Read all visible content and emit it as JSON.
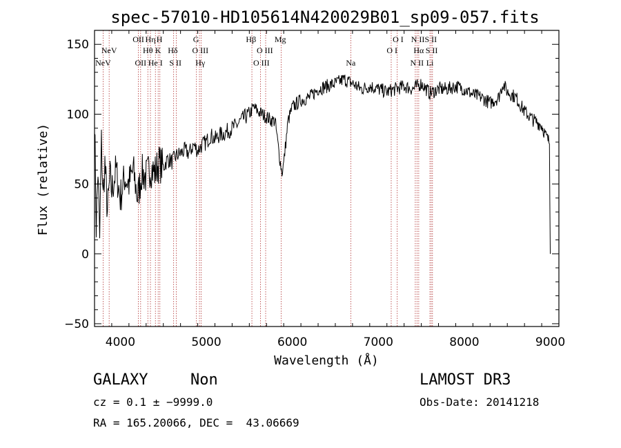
{
  "chart_data": {
    "type": "line",
    "title": "spec-57010-HD105614N420029B01_sp09-057.fits",
    "xlabel": "Wavelength (Å)",
    "ylabel": "Flux (relative)",
    "xlim": [
      3700,
      9100
    ],
    "ylim": [
      -52,
      160
    ],
    "xticks": [
      4000,
      5000,
      6000,
      7000,
      8000,
      9000
    ],
    "xtick_labels": [
      "4000",
      "5000",
      "6000",
      "7000",
      "8000",
      "9000"
    ],
    "yticks": [
      -50,
      0,
      50,
      100,
      150
    ],
    "ytick_labels": [
      "−50",
      "0",
      "50",
      "100",
      "150"
    ],
    "grid": false,
    "legend": "none",
    "series": [
      {
        "x": [
          3700,
          3720,
          3740,
          3760,
          3780,
          3800,
          3820,
          3850,
          3880,
          3900,
          3950,
          4000,
          4050,
          4100,
          4150,
          4200,
          4250,
          4300,
          4350,
          4400,
          4450,
          4500,
          4550,
          4600,
          4650,
          4700,
          4750,
          4800,
          4850,
          4900,
          4950,
          5000,
          5050,
          5100,
          5150,
          5200,
          5250,
          5300,
          5350,
          5400,
          5450,
          5500,
          5550,
          5600,
          5650,
          5700,
          5750,
          5800,
          5850,
          5880,
          5900,
          5950,
          6000,
          6100,
          6200,
          6300,
          6400,
          6500,
          6600,
          6700,
          6800,
          6900,
          7000,
          7100,
          7200,
          7300,
          7400,
          7500,
          7600,
          7700,
          7800,
          7900,
          8000,
          8100,
          8200,
          8300,
          8400,
          8450,
          8500,
          8600,
          8700,
          8800,
          8900,
          8950,
          8990,
          9000
        ],
        "y": [
          100,
          20,
          60,
          10,
          80,
          40,
          65,
          30,
          55,
          45,
          60,
          40,
          55,
          50,
          60,
          40,
          58,
          55,
          62,
          58,
          65,
          62,
          68,
          66,
          70,
          72,
          74,
          72,
          78,
          74,
          78,
          80,
          85,
          82,
          85,
          86,
          88,
          90,
          92,
          95,
          98,
          100,
          105,
          102,
          100,
          98,
          96,
          95,
          70,
          58,
          65,
          95,
          105,
          110,
          112,
          118,
          120,
          122,
          125,
          122,
          118,
          120,
          118,
          116,
          118,
          120,
          118,
          122,
          115,
          118,
          118,
          120,
          118,
          114,
          112,
          108,
          112,
          122,
          116,
          112,
          102,
          96,
          92,
          84,
          80,
          0
        ]
      }
    ],
    "spectral_lines": [
      {
        "label": "NeV",
        "wavelength": 3800,
        "row": 3
      },
      {
        "label": "NeV",
        "wavelength": 3870,
        "row": 2
      },
      {
        "label": "OII",
        "wavelength": 4210,
        "row": 1
      },
      {
        "label": "OII",
        "wavelength": 4236,
        "row": 3
      },
      {
        "label": "Hη",
        "wavelength": 4350,
        "row": 1
      },
      {
        "label": "Hθ",
        "wavelength": 4320,
        "row": 2
      },
      {
        "label": "H",
        "wavelength": 4455,
        "row": 1
      },
      {
        "label": "He I",
        "wavelength": 4408,
        "row": 3
      },
      {
        "label": "K",
        "wavelength": 4440,
        "row": 2
      },
      {
        "label": "Hδ",
        "wavelength": 4610,
        "row": 2
      },
      {
        "label": "S II",
        "wavelength": 4640,
        "row": 3
      },
      {
        "label": "G",
        "wavelength": 4880,
        "row": 1
      },
      {
        "label": "O III",
        "wavelength": 4930,
        "row": 2
      },
      {
        "label": "Hγ",
        "wavelength": 4930,
        "row": 3
      },
      {
        "label": "Hβ",
        "wavelength": 5520,
        "row": 1
      },
      {
        "label": "O III",
        "wavelength": 5680,
        "row": 2
      },
      {
        "label": "O III",
        "wavelength": 5640,
        "row": 3
      },
      {
        "label": "Mg",
        "wavelength": 5860,
        "row": 1
      },
      {
        "label": "Na",
        "wavelength": 6680,
        "row": 3
      },
      {
        "label": "O I",
        "wavelength": 7230,
        "row": 1
      },
      {
        "label": "O I",
        "wavelength": 7160,
        "row": 2
      },
      {
        "label": "N II",
        "wavelength": 7460,
        "row": 1
      },
      {
        "label": "Hα",
        "wavelength": 7470,
        "row": 2
      },
      {
        "label": "N II",
        "wavelength": 7450,
        "row": 3
      },
      {
        "label": "S II",
        "wavelength": 7610,
        "row": 1
      },
      {
        "label": "S II",
        "wavelength": 7620,
        "row": 2
      },
      {
        "label": "Li",
        "wavelength": 7600,
        "row": 3
      }
    ],
    "line_marker_wavelengths": [
      3800,
      3870,
      4210,
      4236,
      4320,
      4350,
      4408,
      4440,
      4460,
      4620,
      4650,
      4885,
      4920,
      4940,
      5530,
      5630,
      5690,
      5870,
      6680,
      7150,
      7220,
      7430,
      7450,
      7470,
      7600,
      7615,
      7630
    ]
  },
  "footer": {
    "object_class": "GALAXY",
    "subclass": "Non",
    "survey": "LAMOST DR3",
    "cz": "cz = 0.1 ± −9999.0",
    "obs_date": "Obs-Date: 20141218",
    "coords": "RA = 165.20066, DEC =  43.06669"
  }
}
